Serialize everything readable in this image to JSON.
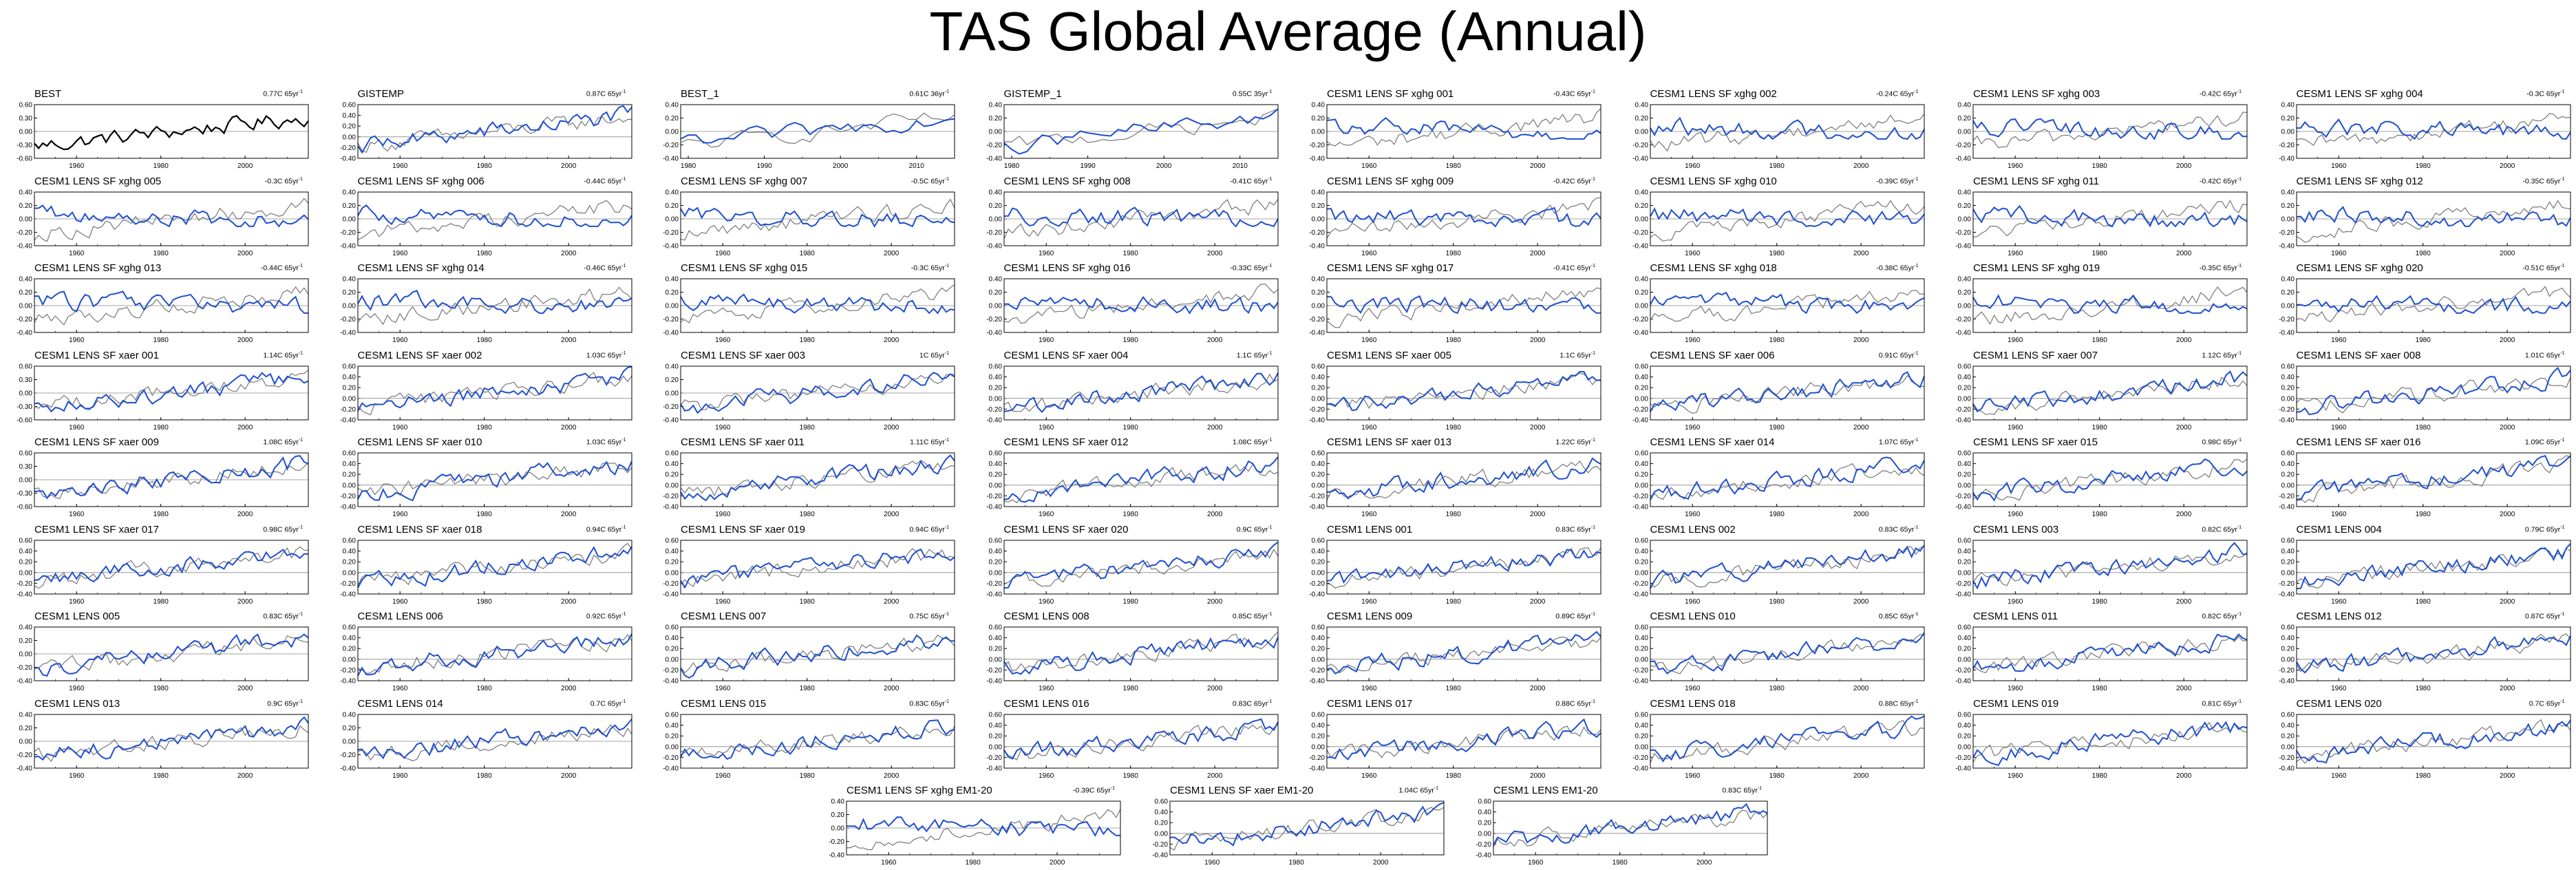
{
  "title": "TAS Global Average (Annual)",
  "chart_data": {
    "type": "line",
    "layout": "small-multiples",
    "common": {
      "ytick_labels_a": [
        "0.60",
        "0.30",
        "0.00",
        "-0.30",
        "-0.60"
      ],
      "ytick_labels_b": [
        "0.40",
        "0.20",
        "0.00",
        "-0.20",
        "-0.40"
      ],
      "ytick_labels_c": [
        "0.60",
        "0.40",
        "0.20",
        "0.00",
        "-0.20",
        "-0.40"
      ]
    },
    "panels": [
      {
        "title": "BEST",
        "trend": "0.77C 65yr",
        "ticks": "a",
        "xstart": 1950,
        "xticks": [
          "1960",
          "1980",
          "2000"
        ],
        "obs": true
      },
      {
        "title": "GISTEMP",
        "trend": "0.87C 65yr",
        "ticks": "c",
        "xstart": 1950,
        "xticks": [
          "1960",
          "1980",
          "2000"
        ]
      },
      {
        "title": "BEST_1",
        "trend": "0.61C 36yr",
        "ticks": "b",
        "xstart": 1979,
        "xticks": [
          "1980",
          "1990",
          "2000",
          "2010"
        ]
      },
      {
        "title": "GISTEMP_1",
        "trend": "0.55C 35yr",
        "ticks": "b",
        "xstart": 1979,
        "xticks": [
          "1980",
          "1990",
          "2000",
          "2010"
        ]
      },
      {
        "title": "CESM1 LENS SF xghg 001",
        "trend": "-0.43C 65yr",
        "ticks": "b",
        "xstart": 1950,
        "xticks": [
          "1960",
          "1980",
          "2000"
        ]
      },
      {
        "title": "CESM1 LENS SF xghg 002",
        "trend": "-0.24C 65yr",
        "ticks": "b",
        "xstart": 1950,
        "xticks": [
          "1960",
          "1980",
          "2000"
        ]
      },
      {
        "title": "CESM1 LENS SF xghg 003",
        "trend": "-0.42C 65yr",
        "ticks": "b",
        "xstart": 1950,
        "xticks": [
          "1960",
          "1980",
          "2000"
        ]
      },
      {
        "title": "CESM1 LENS SF xghg 004",
        "trend": "-0.3C 65yr",
        "ticks": "b",
        "xstart": 1950,
        "xticks": [
          "1960",
          "1980",
          "2000"
        ]
      },
      {
        "title": "CESM1 LENS SF xghg 005",
        "trend": "-0.3C 65yr",
        "ticks": "b",
        "xstart": 1950,
        "xticks": [
          "1960",
          "1980",
          "2000"
        ]
      },
      {
        "title": "CESM1 LENS SF xghg 006",
        "trend": "-0.44C 65yr",
        "ticks": "b",
        "xstart": 1950,
        "xticks": [
          "1960",
          "1980",
          "2000"
        ]
      },
      {
        "title": "CESM1 LENS SF xghg 007",
        "trend": "-0.5C 65yr",
        "ticks": "b",
        "xstart": 1950,
        "xticks": [
          "1960",
          "1980",
          "2000"
        ]
      },
      {
        "title": "CESM1 LENS SF xghg 008",
        "trend": "-0.41C 65yr",
        "ticks": "b",
        "xstart": 1950,
        "xticks": [
          "1960",
          "1980",
          "2000"
        ]
      },
      {
        "title": "CESM1 LENS SF xghg 009",
        "trend": "-0.42C 65yr",
        "ticks": "b",
        "xstart": 1950,
        "xticks": [
          "1960",
          "1980",
          "2000"
        ]
      },
      {
        "title": "CESM1 LENS SF xghg 010",
        "trend": "-0.39C 65yr",
        "ticks": "b",
        "xstart": 1950,
        "xticks": [
          "1960",
          "1980",
          "2000"
        ]
      },
      {
        "title": "CESM1 LENS SF xghg 011",
        "trend": "-0.42C 65yr",
        "ticks": "b",
        "xstart": 1950,
        "xticks": [
          "1960",
          "1980",
          "2000"
        ]
      },
      {
        "title": "CESM1 LENS SF xghg 012",
        "trend": "-0.35C 65yr",
        "ticks": "b",
        "xstart": 1950,
        "xticks": [
          "1960",
          "1980",
          "2000"
        ]
      },
      {
        "title": "CESM1 LENS SF xghg 013",
        "trend": "-0.44C 65yr",
        "ticks": "b",
        "xstart": 1950,
        "xticks": [
          "1960",
          "1980",
          "2000"
        ]
      },
      {
        "title": "CESM1 LENS SF xghg 014",
        "trend": "-0.46C 65yr",
        "ticks": "b",
        "xstart": 1950,
        "xticks": [
          "1960",
          "1980",
          "2000"
        ]
      },
      {
        "title": "CESM1 LENS SF xghg 015",
        "trend": "-0.3C 65yr",
        "ticks": "b",
        "xstart": 1950,
        "xticks": [
          "1960",
          "1980",
          "2000"
        ]
      },
      {
        "title": "CESM1 LENS SF xghg 016",
        "trend": "-0.33C 65yr",
        "ticks": "b",
        "xstart": 1950,
        "xticks": [
          "1960",
          "1980",
          "2000"
        ]
      },
      {
        "title": "CESM1 LENS SF xghg 017",
        "trend": "-0.41C 65yr",
        "ticks": "b",
        "xstart": 1950,
        "xticks": [
          "1960",
          "1980",
          "2000"
        ]
      },
      {
        "title": "CESM1 LENS SF xghg 018",
        "trend": "-0.38C 65yr",
        "ticks": "b",
        "xstart": 1950,
        "xticks": [
          "1960",
          "1980",
          "2000"
        ]
      },
      {
        "title": "CESM1 LENS SF xghg 019",
        "trend": "-0.35C 65yr",
        "ticks": "b",
        "xstart": 1950,
        "xticks": [
          "1960",
          "1980",
          "2000"
        ]
      },
      {
        "title": "CESM1 LENS SF xghg 020",
        "trend": "-0.51C 65yr",
        "ticks": "b",
        "xstart": 1950,
        "xticks": [
          "1960",
          "1980",
          "2000"
        ]
      },
      {
        "title": "CESM1 LENS SF xaer 001",
        "trend": "1.14C 65yr",
        "ticks": "a",
        "xstart": 1950,
        "xticks": [
          "1960",
          "1980",
          "2000"
        ]
      },
      {
        "title": "CESM1 LENS SF xaer 002",
        "trend": "1.03C 65yr",
        "ticks": "c",
        "xstart": 1950,
        "xticks": [
          "1960",
          "1980",
          "2000"
        ]
      },
      {
        "title": "CESM1 LENS SF xaer 003",
        "trend": "1C 65yr",
        "ticks": "b",
        "xstart": 1950,
        "xticks": [
          "1960",
          "1980",
          "2000"
        ]
      },
      {
        "title": "CESM1 LENS SF xaer 004",
        "trend": "1.1C 65yr",
        "ticks": "c",
        "xstart": 1950,
        "xticks": [
          "1960",
          "1980",
          "2000"
        ]
      },
      {
        "title": "CESM1 LENS SF xaer 005",
        "trend": "1.1C 65yr",
        "ticks": "c",
        "xstart": 1950,
        "xticks": [
          "1960",
          "1980",
          "2000"
        ]
      },
      {
        "title": "CESM1 LENS SF xaer 006",
        "trend": "0.91C 65yr",
        "ticks": "c",
        "xstart": 1950,
        "xticks": [
          "1960",
          "1980",
          "2000"
        ]
      },
      {
        "title": "CESM1 LENS SF xaer 007",
        "trend": "1.12C 65yr",
        "ticks": "c",
        "xstart": 1950,
        "xticks": [
          "1960",
          "1980",
          "2000"
        ]
      },
      {
        "title": "CESM1 LENS SF xaer 008",
        "trend": "1.01C 65yr",
        "ticks": "c",
        "xstart": 1950,
        "xticks": [
          "1960",
          "1980",
          "2000"
        ]
      },
      {
        "title": "CESM1 LENS SF xaer 009",
        "trend": "1.08C 65yr",
        "ticks": "a",
        "xstart": 1950,
        "xticks": [
          "1960",
          "1980",
          "2000"
        ]
      },
      {
        "title": "CESM1 LENS SF xaer 010",
        "trend": "1.03C 65yr",
        "ticks": "c",
        "xstart": 1950,
        "xticks": [
          "1960",
          "1980",
          "2000"
        ]
      },
      {
        "title": "CESM1 LENS SF xaer 011",
        "trend": "1.11C 65yr",
        "ticks": "c",
        "xstart": 1950,
        "xticks": [
          "1960",
          "1980",
          "2000"
        ]
      },
      {
        "title": "CESM1 LENS SF xaer 012",
        "trend": "1.08C 65yr",
        "ticks": "c",
        "xstart": 1950,
        "xticks": [
          "1960",
          "1980",
          "2000"
        ]
      },
      {
        "title": "CESM1 LENS SF xaer 013",
        "trend": "1.22C 65yr",
        "ticks": "c",
        "xstart": 1950,
        "xticks": [
          "1960",
          "1980",
          "2000"
        ]
      },
      {
        "title": "CESM1 LENS SF xaer 014",
        "trend": "1.07C 65yr",
        "ticks": "c",
        "xstart": 1950,
        "xticks": [
          "1960",
          "1980",
          "2000"
        ]
      },
      {
        "title": "CESM1 LENS SF xaer 015",
        "trend": "0.98C 65yr",
        "ticks": "c",
        "xstart": 1950,
        "xticks": [
          "1960",
          "1980",
          "2000"
        ]
      },
      {
        "title": "CESM1 LENS SF xaer 016",
        "trend": "1.09C 65yr",
        "ticks": "c",
        "xstart": 1950,
        "xticks": [
          "1960",
          "1980",
          "2000"
        ]
      },
      {
        "title": "CESM1 LENS SF xaer 017",
        "trend": "0.98C 65yr",
        "ticks": "c",
        "xstart": 1950,
        "xticks": [
          "1960",
          "1980",
          "2000"
        ]
      },
      {
        "title": "CESM1 LENS SF xaer 018",
        "trend": "0.94C 65yr",
        "ticks": "c",
        "xstart": 1950,
        "xticks": [
          "1960",
          "1980",
          "2000"
        ]
      },
      {
        "title": "CESM1 LENS SF xaer 019",
        "trend": "0.94C 65yr",
        "ticks": "c",
        "xstart": 1950,
        "xticks": [
          "1960",
          "1980",
          "2000"
        ]
      },
      {
        "title": "CESM1 LENS SF xaer 020",
        "trend": "0.9C 65yr",
        "ticks": "c",
        "xstart": 1950,
        "xticks": [
          "1960",
          "1980",
          "2000"
        ]
      },
      {
        "title": "CESM1 LENS 001",
        "trend": "0.83C 65yr",
        "ticks": "c",
        "xstart": 1950,
        "xticks": [
          "1960",
          "1980",
          "2000"
        ]
      },
      {
        "title": "CESM1 LENS 002",
        "trend": "0.83C 65yr",
        "ticks": "c",
        "xstart": 1950,
        "xticks": [
          "1960",
          "1980",
          "2000"
        ]
      },
      {
        "title": "CESM1 LENS 003",
        "trend": "0.82C 65yr",
        "ticks": "c",
        "xstart": 1950,
        "xticks": [
          "1960",
          "1980",
          "2000"
        ]
      },
      {
        "title": "CESM1 LENS 004",
        "trend": "0.79C 65yr",
        "ticks": "c",
        "xstart": 1950,
        "xticks": [
          "1960",
          "1980",
          "2000"
        ]
      },
      {
        "title": "CESM1 LENS 005",
        "trend": "0.83C 65yr",
        "ticks": "b",
        "xstart": 1950,
        "xticks": [
          "1960",
          "1980",
          "2000"
        ]
      },
      {
        "title": "CESM1 LENS 006",
        "trend": "0.92C 65yr",
        "ticks": "c",
        "xstart": 1950,
        "xticks": [
          "1960",
          "1980",
          "2000"
        ]
      },
      {
        "title": "CESM1 LENS 007",
        "trend": "0.75C 65yr",
        "ticks": "c",
        "xstart": 1950,
        "xticks": [
          "1960",
          "1980",
          "2000"
        ]
      },
      {
        "title": "CESM1 LENS 008",
        "trend": "0.85C 65yr",
        "ticks": "c",
        "xstart": 1950,
        "xticks": [
          "1960",
          "1980",
          "2000"
        ]
      },
      {
        "title": "CESM1 LENS 009",
        "trend": "0.89C 65yr",
        "ticks": "c",
        "xstart": 1950,
        "xticks": [
          "1960",
          "1980",
          "2000"
        ]
      },
      {
        "title": "CESM1 LENS 010",
        "trend": "0.85C 65yr",
        "ticks": "c",
        "xstart": 1950,
        "xticks": [
          "1960",
          "1980",
          "2000"
        ]
      },
      {
        "title": "CESM1 LENS 011",
        "trend": "0.82C 65yr",
        "ticks": "c",
        "xstart": 1950,
        "xticks": [
          "1960",
          "1980",
          "2000"
        ]
      },
      {
        "title": "CESM1 LENS 012",
        "trend": "0.87C 65yr",
        "ticks": "c",
        "xstart": 1950,
        "xticks": [
          "1960",
          "1980",
          "2000"
        ]
      },
      {
        "title": "CESM1 LENS 013",
        "trend": "0.9C 65yr",
        "ticks": "b",
        "xstart": 1950,
        "xticks": [
          "1960",
          "1980",
          "2000"
        ]
      },
      {
        "title": "CESM1 LENS 014",
        "trend": "0.7C 65yr",
        "ticks": "b",
        "xstart": 1950,
        "xticks": [
          "1960",
          "1980",
          "2000"
        ]
      },
      {
        "title": "CESM1 LENS 015",
        "trend": "0.83C 65yr",
        "ticks": "c",
        "xstart": 1950,
        "xticks": [
          "1960",
          "1980",
          "2000"
        ]
      },
      {
        "title": "CESM1 LENS 016",
        "trend": "0.83C 65yr",
        "ticks": "c",
        "xstart": 1950,
        "xticks": [
          "1960",
          "1980",
          "2000"
        ]
      },
      {
        "title": "CESM1 LENS 017",
        "trend": "0.88C 65yr",
        "ticks": "c",
        "xstart": 1950,
        "xticks": [
          "1960",
          "1980",
          "2000"
        ]
      },
      {
        "title": "CESM1 LENS 018",
        "trend": "0.88C 65yr",
        "ticks": "c",
        "xstart": 1950,
        "xticks": [
          "1960",
          "1980",
          "2000"
        ]
      },
      {
        "title": "CESM1 LENS 019",
        "trend": "0.81C 65yr",
        "ticks": "c",
        "xstart": 1950,
        "xticks": [
          "1960",
          "1980",
          "2000"
        ]
      },
      {
        "title": "CESM1 LENS 020",
        "trend": "0.7C 65yr",
        "ticks": "c",
        "xstart": 1950,
        "xticks": [
          "1960",
          "1980",
          "2000"
        ]
      },
      {
        "title": "CESM1 LENS SF xghg EM1-20",
        "trend": "-0.39C 65yr",
        "ticks": "b",
        "xstart": 1950,
        "xticks": [
          "1960",
          "1980",
          "2000"
        ]
      },
      {
        "title": "CESM1 LENS SF xaer EM1-20",
        "trend": "1.04C 65yr",
        "ticks": "c",
        "xstart": 1950,
        "xticks": [
          "1960",
          "1980",
          "2000"
        ]
      },
      {
        "title": "CESM1 LENS EM1-20",
        "trend": "0.83C 65yr",
        "ticks": "c",
        "xstart": 1950,
        "xticks": [
          "1960",
          "1980",
          "2000"
        ]
      }
    ]
  },
  "colors": {
    "model": "#1f4fcf",
    "obs": "#000000",
    "reference": "#777777",
    "axis": "#000000"
  }
}
